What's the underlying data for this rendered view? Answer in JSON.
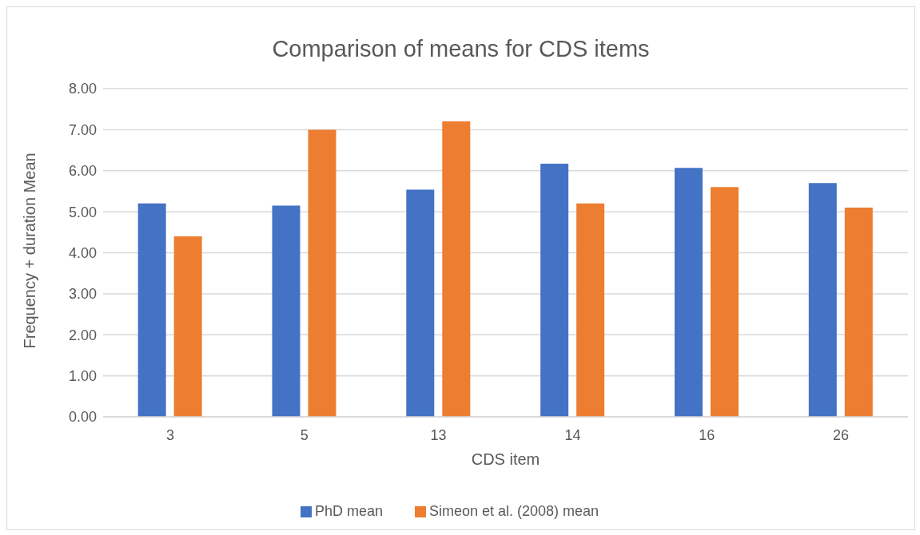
{
  "chart_data": {
    "type": "bar",
    "title": "Comparison of means for CDS items",
    "xlabel": "CDS item",
    "ylabel": "Frequency + duration Mean",
    "categories": [
      "3",
      "5",
      "13",
      "14",
      "16",
      "26"
    ],
    "series": [
      {
        "name": "PhD mean",
        "color": "#4472c4",
        "values": [
          5.2,
          5.15,
          5.54,
          6.17,
          6.07,
          5.7
        ]
      },
      {
        "name": "Simeon et al. (2008) mean",
        "color": "#ed7d31",
        "values": [
          4.4,
          7.0,
          7.2,
          5.2,
          5.6,
          5.1
        ]
      }
    ],
    "ylim": [
      0,
      8
    ],
    "yticks": [
      {
        "value": 0,
        "label": "0.00"
      },
      {
        "value": 1,
        "label": "1.00"
      },
      {
        "value": 2,
        "label": "2.00"
      },
      {
        "value": 3,
        "label": "3.00"
      },
      {
        "value": 4,
        "label": "4.00"
      },
      {
        "value": 5,
        "label": "5.00"
      },
      {
        "value": 6,
        "label": "6.00"
      },
      {
        "value": 7,
        "label": "7.00"
      },
      {
        "value": 8,
        "label": "8.00"
      }
    ],
    "grid": "y",
    "legend": "bottom"
  }
}
